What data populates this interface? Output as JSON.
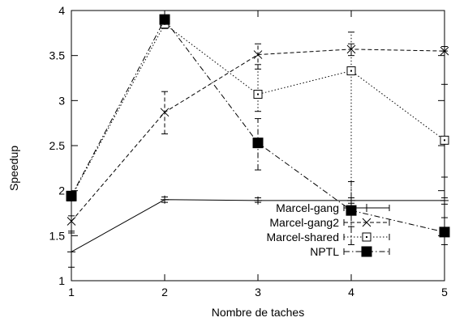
{
  "chart_data": {
    "type": "line",
    "xlabel": "Nombre de taches",
    "ylabel": "Speedup",
    "x": [
      1,
      2,
      3,
      4,
      5
    ],
    "xlim": [
      1,
      5
    ],
    "ylim": [
      1,
      4
    ],
    "xticks": [
      "1",
      "2",
      "3",
      "4",
      "5"
    ],
    "yticks": [
      "1",
      "1.5",
      "2",
      "2.5",
      "3",
      "3.5",
      "4"
    ],
    "grid": false,
    "legend_position": "bottom-right",
    "series": [
      {
        "name": "Marcel-gang",
        "values": [
          1.32,
          1.9,
          1.89,
          1.89,
          1.89
        ],
        "error_low": [
          1.15,
          1.87,
          1.87,
          1.86,
          1.85
        ],
        "error_high": [
          1.53,
          1.93,
          1.92,
          1.92,
          1.92
        ],
        "line_style": "solid",
        "marker": "plus"
      },
      {
        "name": "Marcel-gang2",
        "values": [
          1.66,
          2.87,
          3.51,
          3.57,
          3.55
        ],
        "error_low": [
          1.55,
          2.63,
          3.35,
          3.5,
          3.55
        ],
        "error_high": [
          1.72,
          3.1,
          3.63,
          3.63,
          3.6
        ],
        "line_style": "dashed",
        "marker": "x"
      },
      {
        "name": "Marcel-shared",
        "values": [
          1.93,
          3.85,
          3.07,
          3.33,
          2.56
        ],
        "error_low": [
          1.93,
          3.8,
          2.88,
          1.6,
          2.15
        ],
        "error_high": [
          1.93,
          3.9,
          3.4,
          3.76,
          3.18
        ],
        "line_style": "dotted",
        "marker": "open-square"
      },
      {
        "name": "NPTL",
        "values": [
          1.94,
          3.9,
          2.53,
          1.78,
          1.54
        ],
        "error_low": [
          1.9,
          3.88,
          2.23,
          1.4,
          1.4
        ],
        "error_high": [
          1.98,
          3.92,
          2.8,
          2.1,
          1.7
        ],
        "line_style": "dash-dot",
        "marker": "filled-square"
      }
    ]
  }
}
